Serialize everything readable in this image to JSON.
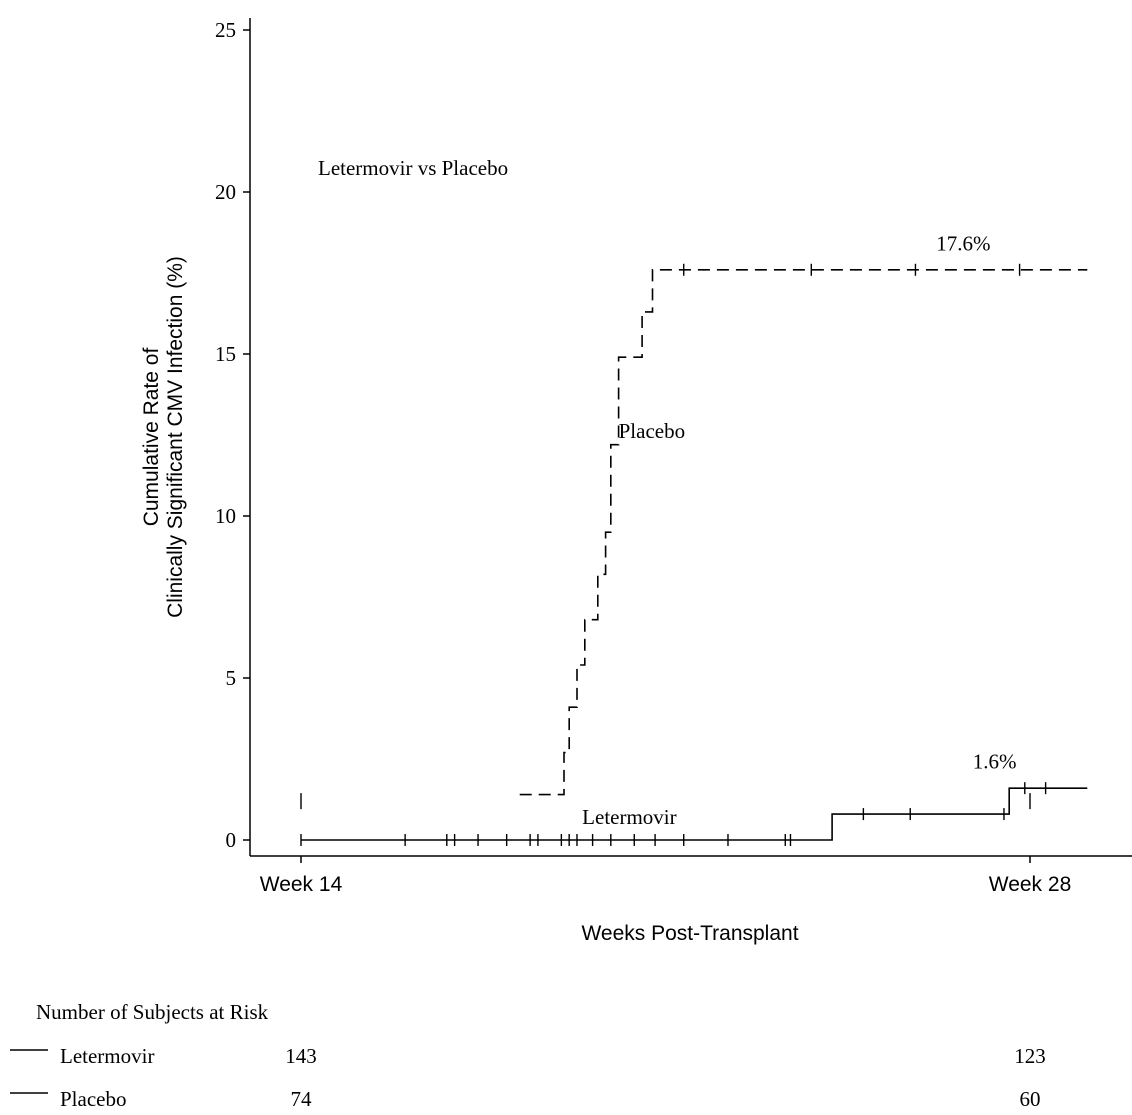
{
  "chart_data": {
    "type": "line",
    "title": "",
    "annotation_label": "Letermovir vs Placebo",
    "ylabel_line1": "Cumulative Rate of",
    "ylabel_line2": "Clinically Significant CMV Infection (%)",
    "xlabel": "Weeks Post-Transplant",
    "ylim": [
      0,
      25
    ],
    "yticks": [
      0,
      5,
      10,
      15,
      20,
      25
    ],
    "xlim": [
      14,
      29.1
    ],
    "xticks": [
      {
        "value": 14,
        "label": "Week 14"
      },
      {
        "value": 28,
        "label": "Week 28"
      }
    ],
    "series": [
      {
        "name": "Placebo",
        "style": "dashed",
        "label": "Placebo",
        "label_at": [
          20.1,
          12.4
        ],
        "end_label": "17.6%",
        "end_label_at": [
          26.2,
          18.2
        ],
        "steps": [
          [
            18.2,
            1.4
          ],
          [
            19.05,
            1.4
          ],
          [
            19.05,
            2.7
          ],
          [
            19.15,
            2.7
          ],
          [
            19.15,
            4.1
          ],
          [
            19.3,
            4.1
          ],
          [
            19.3,
            5.4
          ],
          [
            19.45,
            5.4
          ],
          [
            19.45,
            6.8
          ],
          [
            19.7,
            6.8
          ],
          [
            19.7,
            8.2
          ],
          [
            19.85,
            8.2
          ],
          [
            19.85,
            9.5
          ],
          [
            19.95,
            9.5
          ],
          [
            19.95,
            12.2
          ],
          [
            20.1,
            12.2
          ],
          [
            20.1,
            14.9
          ],
          [
            20.55,
            14.9
          ],
          [
            20.55,
            16.3
          ],
          [
            20.75,
            16.3
          ],
          [
            20.75,
            17.6
          ],
          [
            29.1,
            17.6
          ]
        ],
        "censor_x": [
          21.35,
          23.8,
          25.8,
          27.8
        ]
      },
      {
        "name": "Letermovir",
        "style": "solid",
        "label": "Letermovir",
        "label_at": [
          19.4,
          0.5
        ],
        "end_label": "1.6%",
        "end_label_at": [
          26.9,
          2.2
        ],
        "steps": [
          [
            14.0,
            0.0
          ],
          [
            24.2,
            0.0
          ],
          [
            24.2,
            0.8
          ],
          [
            27.6,
            0.8
          ],
          [
            27.6,
            1.6
          ],
          [
            29.1,
            1.6
          ]
        ],
        "censor_x": [
          14.0,
          16.0,
          16.8,
          16.95,
          17.4,
          17.95,
          18.4,
          18.55,
          19.0,
          19.15,
          19.3,
          19.6,
          19.95,
          20.4,
          20.8,
          21.35,
          22.2,
          23.3,
          23.4,
          24.8,
          25.7,
          27.5,
          27.9,
          28.3
        ],
        "extra_marks": [
          {
            "x": 14.0,
            "y": 1.2
          },
          {
            "x": 28.0,
            "y": 1.2
          }
        ]
      }
    ],
    "grid": false,
    "legend": "none"
  },
  "risk_table": {
    "title": "Number of Subjects at Risk",
    "rows": [
      {
        "name": "Letermovir",
        "values": [
          "143",
          "123"
        ]
      },
      {
        "name": "Placebo",
        "values": [
          "74",
          "60"
        ]
      }
    ]
  }
}
